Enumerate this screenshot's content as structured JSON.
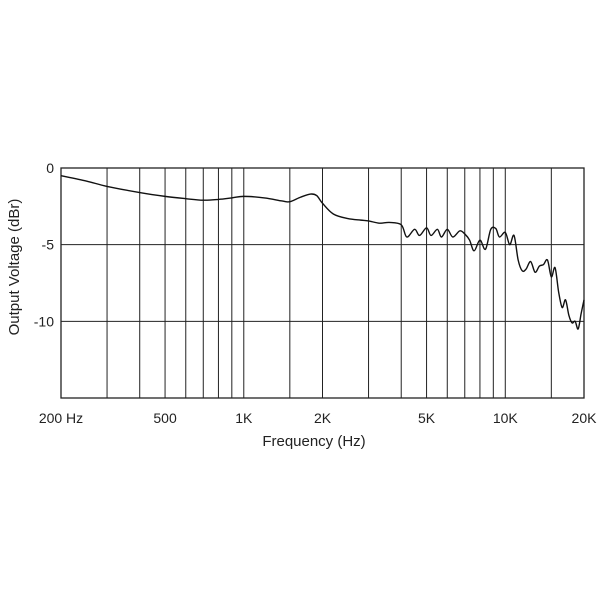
{
  "chart_data": {
    "type": "line",
    "title": "",
    "xlabel": "Frequency (Hz)",
    "ylabel": "Output Voltage (dBr)",
    "x_scale": "log",
    "xlim": [
      200,
      20000
    ],
    "ylim": [
      -15,
      0
    ],
    "grid": true,
    "x_gridlines": [
      300,
      400,
      500,
      600,
      700,
      800,
      900,
      1000,
      1500,
      2000,
      3000,
      4000,
      5000,
      6000,
      7000,
      8000,
      9000,
      10000,
      15000
    ],
    "y_gridlines": [
      -5,
      -10
    ],
    "x_ticks": [
      {
        "value": 200,
        "label": "200 Hz"
      },
      {
        "value": 500,
        "label": "500"
      },
      {
        "value": 1000,
        "label": "1K"
      },
      {
        "value": 2000,
        "label": "2K"
      },
      {
        "value": 5000,
        "label": "5K"
      },
      {
        "value": 10000,
        "label": "10K"
      },
      {
        "value": 20000,
        "label": "20K"
      }
    ],
    "y_ticks": [
      {
        "value": 0,
        "label": "0"
      },
      {
        "value": -5,
        "label": "-5"
      },
      {
        "value": -10,
        "label": "-10"
      }
    ],
    "series": [
      {
        "x": [
          200,
          250,
          300,
          400,
          500,
          600,
          700,
          800,
          900,
          1000,
          1200,
          1400,
          1500,
          1650,
          1800,
          1900,
          2000,
          2200,
          2500,
          2800,
          3000,
          3300,
          3600,
          4000,
          4200,
          4500,
          4700,
          5000,
          5200,
          5500,
          5700,
          6000,
          6300,
          6700,
          7000,
          7300,
          7600,
          8000,
          8400,
          8800,
          9200,
          9500,
          10000,
          10400,
          10800,
          11200,
          11600,
          12000,
          12500,
          13000,
          13500,
          14000,
          14500,
          15000,
          15500,
          16000,
          16500,
          17000,
          17500,
          18000,
          18500,
          19000,
          19500,
          20000
        ],
        "y": [
          -0.5,
          -0.85,
          -1.2,
          -1.6,
          -1.85,
          -2.0,
          -2.1,
          -2.05,
          -1.95,
          -1.85,
          -1.95,
          -2.15,
          -2.2,
          -1.9,
          -1.7,
          -1.8,
          -2.3,
          -3.0,
          -3.3,
          -3.4,
          -3.45,
          -3.6,
          -3.55,
          -3.7,
          -4.5,
          -4.0,
          -4.4,
          -3.9,
          -4.4,
          -4.0,
          -4.5,
          -4.0,
          -4.5,
          -4.1,
          -4.3,
          -4.7,
          -5.4,
          -4.7,
          -5.3,
          -4.0,
          -3.95,
          -4.5,
          -4.2,
          -5.0,
          -4.4,
          -6.0,
          -6.7,
          -6.6,
          -6.1,
          -6.8,
          -6.4,
          -6.3,
          -6.0,
          -7.1,
          -6.5,
          -8.1,
          -9.1,
          -8.6,
          -9.6,
          -10.1,
          -10.0,
          -10.5,
          -9.5,
          -8.6
        ]
      }
    ]
  }
}
